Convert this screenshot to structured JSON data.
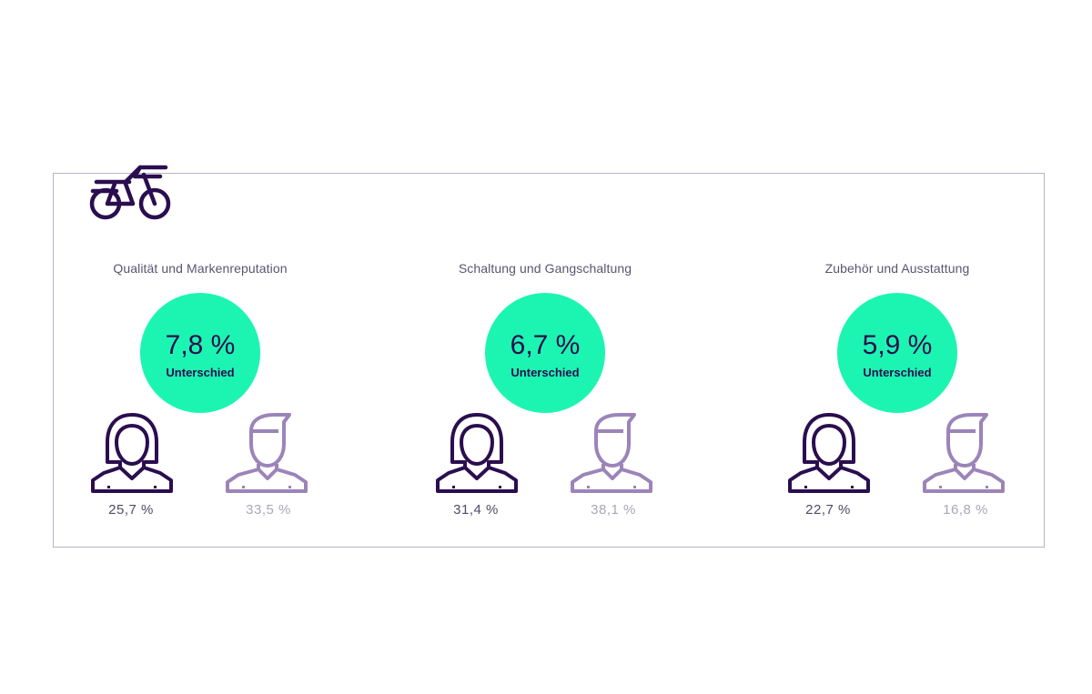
{
  "colors": {
    "accent_circle": "#1cf5b2",
    "female_icon": "#2a0e4f",
    "male_icon": "#9c84b8",
    "frame_border": "#b5b3c7"
  },
  "icon": "bicycle-icon",
  "chart_data": [
    {
      "type": "comparison",
      "title": "Qualität und Markenreputation",
      "difference": "7,8 %",
      "difference_label": "Unterschied",
      "series": [
        {
          "name": "female-icon",
          "value": "25,7 %"
        },
        {
          "name": "male-icon",
          "value": "33,5 %"
        }
      ]
    },
    {
      "type": "comparison",
      "title": "Schaltung und Gangschaltung",
      "difference": "6,7 %",
      "difference_label": "Unterschied",
      "series": [
        {
          "name": "female-icon",
          "value": "31,4 %"
        },
        {
          "name": "male-icon",
          "value": "38,1 %"
        }
      ]
    },
    {
      "type": "comparison",
      "title": "Zubehör und Ausstattung",
      "difference": "5,9 %",
      "difference_label": "Unterschied",
      "series": [
        {
          "name": "female-icon",
          "value": "22,7 %"
        },
        {
          "name": "male-icon",
          "value": "16,8 %"
        }
      ]
    }
  ]
}
